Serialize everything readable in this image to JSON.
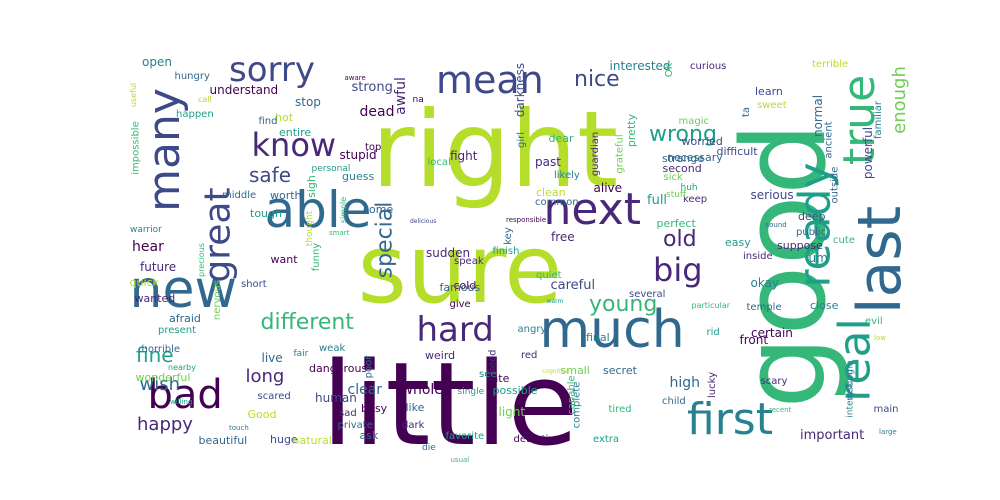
{
  "colors": {
    "background": "#ffffff",
    "palette": [
      "#440154",
      "#482878",
      "#3e4989",
      "#31688e",
      "#26828e",
      "#1f9e89",
      "#35b779",
      "#6ece58",
      "#b5de2b",
      "#fde725"
    ]
  },
  "words": [
    {
      "text": "right"
    },
    {
      "text": "sure"
    },
    {
      "text": "good"
    },
    {
      "text": "little"
    },
    {
      "text": "much"
    },
    {
      "text": "able"
    },
    {
      "text": "next"
    },
    {
      "text": "last"
    },
    {
      "text": "new"
    },
    {
      "text": "first"
    },
    {
      "text": "many"
    },
    {
      "text": "mean"
    },
    {
      "text": "sorry"
    },
    {
      "text": "true"
    },
    {
      "text": "ready"
    },
    {
      "text": "real"
    },
    {
      "text": "know"
    },
    {
      "text": "great"
    },
    {
      "text": "hard"
    },
    {
      "text": "big"
    },
    {
      "text": "bad"
    },
    {
      "text": "nice"
    },
    {
      "text": "special"
    },
    {
      "text": "old"
    },
    {
      "text": "wrong"
    },
    {
      "text": "young"
    },
    {
      "text": "different"
    },
    {
      "text": "fine"
    },
    {
      "text": "safe"
    },
    {
      "text": "wish"
    },
    {
      "text": "happy"
    },
    {
      "text": "enough"
    },
    {
      "text": "long"
    },
    {
      "text": "okay"
    },
    {
      "text": "strong"
    },
    {
      "text": "important"
    },
    {
      "text": "sudden"
    },
    {
      "text": "careful"
    },
    {
      "text": "certain"
    },
    {
      "text": "cold"
    },
    {
      "text": "full"
    },
    {
      "text": "serious"
    },
    {
      "text": "clear"
    },
    {
      "text": "whole"
    },
    {
      "text": "high"
    },
    {
      "text": "free"
    },
    {
      "text": "dead"
    },
    {
      "text": "stupid"
    },
    {
      "text": "past"
    },
    {
      "text": "perfect"
    },
    {
      "text": "easy"
    },
    {
      "text": "suppose"
    },
    {
      "text": "alive"
    },
    {
      "text": "pretty"
    },
    {
      "text": "open"
    },
    {
      "text": "understand"
    },
    {
      "text": "hungry"
    },
    {
      "text": "happen"
    },
    {
      "text": "stop"
    },
    {
      "text": "hot"
    },
    {
      "text": "entire"
    },
    {
      "text": "find"
    },
    {
      "text": "worth"
    },
    {
      "text": "guess"
    },
    {
      "text": "top"
    },
    {
      "text": "tough"
    },
    {
      "text": "hear"
    },
    {
      "text": "future"
    },
    {
      "text": "quick"
    },
    {
      "text": "wanted"
    },
    {
      "text": "afraid"
    },
    {
      "text": "present"
    },
    {
      "text": "horrible"
    },
    {
      "text": "wonderful"
    },
    {
      "text": "beautiful"
    },
    {
      "text": "Good"
    },
    {
      "text": "huge"
    },
    {
      "text": "natural"
    },
    {
      "text": "scared"
    },
    {
      "text": "live"
    },
    {
      "text": "weak"
    },
    {
      "text": "dangerous"
    },
    {
      "text": "human"
    },
    {
      "text": "busy"
    },
    {
      "text": "poor"
    },
    {
      "text": "private"
    },
    {
      "text": "sad"
    },
    {
      "text": "ask"
    },
    {
      "text": "like"
    },
    {
      "text": "dark"
    },
    {
      "text": "die"
    },
    {
      "text": "favorite"
    },
    {
      "text": "detective"
    },
    {
      "text": "light"
    },
    {
      "text": "possible"
    },
    {
      "text": "late"
    },
    {
      "text": "need"
    },
    {
      "text": "weird"
    },
    {
      "text": "angry"
    },
    {
      "text": "red"
    },
    {
      "text": "small"
    },
    {
      "text": "complete"
    },
    {
      "text": "extra"
    },
    {
      "text": "secret"
    },
    {
      "text": "tired"
    },
    {
      "text": "child"
    },
    {
      "text": "lucky"
    },
    {
      "text": "front"
    },
    {
      "text": "scary"
    },
    {
      "text": "close"
    },
    {
      "text": "evil"
    },
    {
      "text": "welcome"
    },
    {
      "text": "main"
    },
    {
      "text": "interesting"
    },
    {
      "text": "temple"
    },
    {
      "text": "rid"
    },
    {
      "text": "several"
    },
    {
      "text": "final"
    },
    {
      "text": "quiet"
    },
    {
      "text": "famous"
    },
    {
      "text": "give"
    },
    {
      "text": "speak"
    },
    {
      "text": "finish"
    },
    {
      "text": "want"
    },
    {
      "text": "funny"
    },
    {
      "text": "short"
    },
    {
      "text": "nervous"
    },
    {
      "text": "precious"
    },
    {
      "text": "warrior"
    },
    {
      "text": "impossible"
    },
    {
      "text": "useful"
    },
    {
      "text": "call"
    },
    {
      "text": "awful"
    },
    {
      "text": "darkness"
    },
    {
      "text": "interested"
    },
    {
      "text": "curious"
    },
    {
      "text": "terrible"
    },
    {
      "text": "magic"
    },
    {
      "text": "worried"
    },
    {
      "text": "necessary"
    },
    {
      "text": "OK"
    },
    {
      "text": "learn"
    },
    {
      "text": "sweet"
    },
    {
      "text": "ta"
    },
    {
      "text": "normal"
    },
    {
      "text": "familiar"
    },
    {
      "text": "powerful"
    },
    {
      "text": "ancient"
    },
    {
      "text": "difficult"
    },
    {
      "text": "strange"
    },
    {
      "text": "second"
    },
    {
      "text": "sick"
    },
    {
      "text": "huh"
    },
    {
      "text": "keep"
    },
    {
      "text": "stuff"
    },
    {
      "text": "deep"
    },
    {
      "text": "cute"
    },
    {
      "text": "public"
    },
    {
      "text": "outside"
    },
    {
      "text": "um"
    },
    {
      "text": "inside"
    },
    {
      "text": "fight"
    },
    {
      "text": "guardian"
    },
    {
      "text": "grateful"
    },
    {
      "text": "likely"
    },
    {
      "text": "dear"
    },
    {
      "text": "local"
    },
    {
      "text": "girl"
    },
    {
      "text": "clean"
    },
    {
      "text": "common"
    },
    {
      "text": "key"
    },
    {
      "text": "personal"
    },
    {
      "text": "sigh"
    },
    {
      "text": "come"
    },
    {
      "text": "middle"
    },
    {
      "text": "simple"
    },
    {
      "text": "thought"
    },
    {
      "text": "fair"
    },
    {
      "text": "see"
    },
    {
      "text": "single"
    },
    {
      "text": "capable"
    },
    {
      "text": "particular"
    },
    {
      "text": "nearby"
    },
    {
      "text": "willing"
    },
    {
      "text": "touch"
    },
    {
      "text": "usual"
    },
    {
      "text": "recent"
    },
    {
      "text": "large"
    },
    {
      "text": "sound"
    },
    {
      "text": "smart"
    },
    {
      "text": "responsible"
    },
    {
      "text": "delicious"
    },
    {
      "text": "aware"
    },
    {
      "text": "na"
    },
    {
      "text": "warm"
    },
    {
      "text": "cognitive"
    },
    {
      "text": "low"
    }
  ]
}
